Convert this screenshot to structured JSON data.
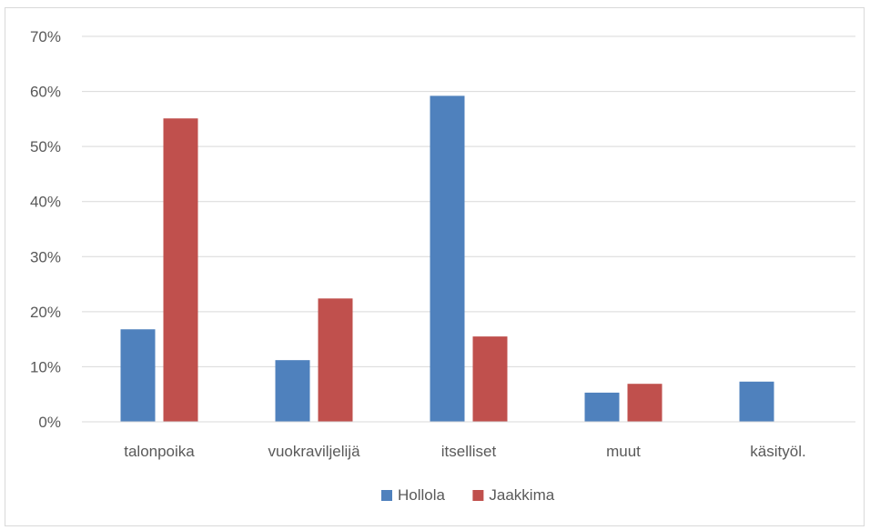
{
  "chart_data": {
    "type": "bar",
    "categories": [
      "talonpoika",
      "vuokraviljelijä",
      "itselliset",
      "muut",
      "käsityöl."
    ],
    "series": [
      {
        "name": "Hollola",
        "color": "#4f81bd",
        "values": [
          0.168,
          0.112,
          0.592,
          0.053,
          0.073
        ]
      },
      {
        "name": "Jaakkima",
        "color": "#c0504d",
        "values": [
          0.551,
          0.224,
          0.155,
          0.069,
          0
        ]
      }
    ],
    "y_ticks": [
      "0%",
      "10%",
      "20%",
      "30%",
      "40%",
      "50%",
      "60%",
      "70%"
    ],
    "ylim": [
      0,
      0.7
    ],
    "grid": true,
    "legend_position": "bottom"
  }
}
